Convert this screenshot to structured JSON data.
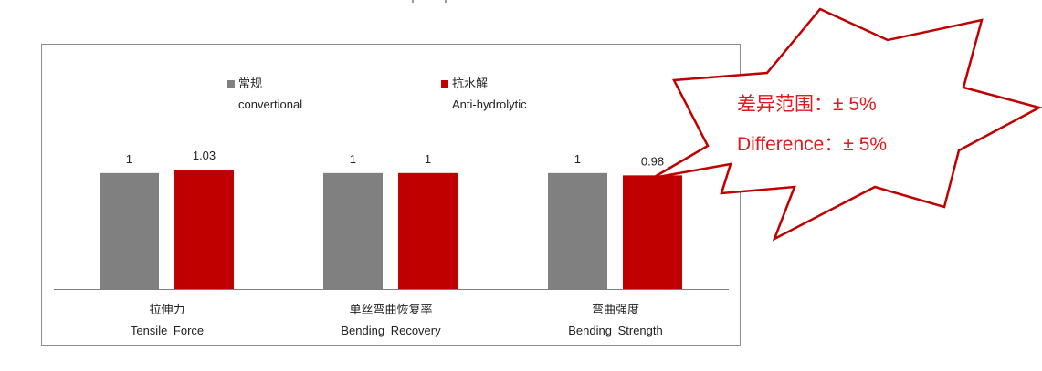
{
  "colors": {
    "conventional": "#808080",
    "anti_hydrolytic": "#c00000",
    "callout_border": "#c00000",
    "callout_text": "#e0191e"
  },
  "legend": [
    {
      "name": "常规",
      "sub": "convertional",
      "color": "#808080"
    },
    {
      "name": "抗水解",
      "sub": "Anti-hydrolytic",
      "color": "#c00000"
    }
  ],
  "categories": [
    {
      "zh": "拉伸力",
      "en": "Tensile Force"
    },
    {
      "zh": "单丝弯曲恢复率",
      "en": "Bending Recovery"
    },
    {
      "zh": "弯曲强度",
      "en": "Bending Strength"
    }
  ],
  "callout": {
    "line1": "差异范围：± 5%",
    "line2": "Difference：± 5%"
  },
  "chart_data": {
    "type": "bar",
    "categories": [
      "拉伸力 Tensile Force",
      "单丝弯曲恢复率 Bending Recovery",
      "弯曲强度 Bending Strength"
    ],
    "series": [
      {
        "name": "常规 convertional",
        "values": [
          1,
          1,
          1
        ]
      },
      {
        "name": "抗水解 Anti-hydrolytic",
        "values": [
          1.03,
          1,
          0.98
        ]
      }
    ],
    "data_labels": [
      [
        "1",
        "1",
        "1"
      ],
      [
        "1.03",
        "1",
        "0.98"
      ]
    ],
    "ylim": [
      0,
      1.03
    ],
    "grid": false,
    "legend_position": "top"
  }
}
